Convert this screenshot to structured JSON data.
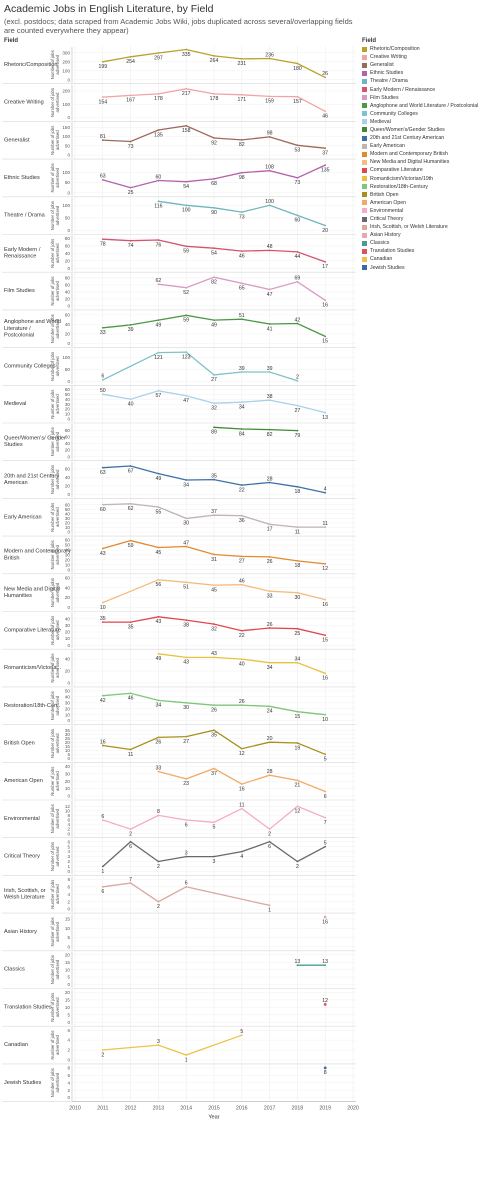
{
  "title": "Academic Jobs in English Literature, by Field",
  "subtitle": "(excl. postdocs; data scraped from Academic Jobs Wiki, jobs duplicated across several/overlapping fields are counted everywhere they appear)",
  "field_header": "Field",
  "legend_header": "Field",
  "ylabel": "Number of jobs advertised",
  "xlabel": "Year",
  "chart_data": {
    "type": "line",
    "layout": "small-multiples",
    "title": "Academic Jobs in English Literature, by Field",
    "xlabel": "Year",
    "ylabel": "Number of jobs advertised",
    "x_ticks": [
      2010,
      2011,
      2012,
      2013,
      2014,
      2015,
      2016,
      2017,
      2018,
      2019,
      2020
    ],
    "xlim": [
      2010,
      2020
    ],
    "grid": true,
    "legend": "right",
    "series": [
      {
        "name": "Rhetoric/Composition",
        "label": "Rhetoric/Composition",
        "color": "#b9a12a",
        "ylim": [
          0,
          330
        ],
        "yticks": [
          0,
          100,
          200,
          300
        ],
        "x": [
          2011,
          2012,
          2013,
          2014,
          2015,
          2016,
          2017,
          2018,
          2019
        ],
        "values": [
          199,
          254,
          297,
          335,
          264,
          231,
          236,
          180,
          26
        ]
      },
      {
        "name": "Creative Writing",
        "label": "Creative Writing",
        "color": "#f2a4a4",
        "ylim": [
          0,
          225
        ],
        "yticks": [
          0,
          100,
          200
        ],
        "x": [
          2011,
          2012,
          2013,
          2014,
          2015,
          2016,
          2017,
          2018,
          2019
        ],
        "values": [
          154,
          167,
          178,
          217,
          178,
          171,
          159,
          157,
          46
        ]
      },
      {
        "name": "Generalist",
        "label": "Generalist",
        "color": "#9c6a5a",
        "ylim": [
          0,
          160
        ],
        "yticks": [
          0,
          50,
          100,
          150
        ],
        "x": [
          2011,
          2012,
          2013,
          2014,
          2015,
          2016,
          2017,
          2018,
          2019
        ],
        "values": [
          81,
          73,
          135,
          158,
          92,
          82,
          98,
          53,
          37
        ]
      },
      {
        "name": "Ethnic Studies",
        "label": "Ethnic Studies",
        "color": "#b462ad",
        "ylim": [
          0,
          145
        ],
        "yticks": [
          0,
          50,
          100
        ],
        "x": [
          2011,
          2012,
          2013,
          2014,
          2015,
          2016,
          2017,
          2018,
          2019
        ],
        "values": [
          63,
          25,
          60,
          54,
          68,
          98,
          108,
          73,
          135
        ]
      },
      {
        "name": "Theatre / Drama",
        "label": "Theatre / Drama",
        "color": "#6fb6bd",
        "ylim": [
          0,
          118
        ],
        "yticks": [
          0,
          50,
          100
        ],
        "x": [
          2013,
          2014,
          2015,
          2016,
          2017,
          2018,
          2019
        ],
        "values": [
          116,
          100,
          90,
          73,
          100,
          60,
          20
        ]
      },
      {
        "name": "Early Modern / Renaissance",
        "label": "Early Modern / Renaissance",
        "color": "#d4546f",
        "ylim": [
          0,
          80
        ],
        "yticks": [
          0,
          20,
          40,
          60,
          80
        ],
        "x": [
          2011,
          2012,
          2013,
          2014,
          2015,
          2016,
          2017,
          2018,
          2019
        ],
        "values": [
          78,
          74,
          76,
          59,
          54,
          46,
          48,
          44,
          17
        ]
      },
      {
        "name": "Film Studies",
        "label": "Film Studies",
        "color": "#d99ac2",
        "ylim": [
          0,
          85
        ],
        "yticks": [
          0,
          20,
          40,
          60,
          80
        ],
        "x": [
          2013,
          2014,
          2015,
          2016,
          2017,
          2018,
          2019
        ],
        "values": [
          62,
          52,
          82,
          65,
          47,
          69,
          16
        ]
      },
      {
        "name": "Anglophone and World Literature / Postcolonial",
        "label": "Anglophone and World Literature / Postcolonial",
        "color": "#4a9a44",
        "ylim": [
          0,
          62
        ],
        "yticks": [
          0,
          20,
          40,
          60
        ],
        "x": [
          2011,
          2012,
          2013,
          2014,
          2015,
          2016,
          2017,
          2018,
          2019
        ],
        "values": [
          33,
          39,
          49,
          59,
          49,
          51,
          41,
          42,
          15
        ]
      },
      {
        "name": "Community Colleges",
        "label": "Community Colleges",
        "color": "#7fc2c9",
        "ylim": [
          0,
          125
        ],
        "yticks": [
          0,
          50,
          100
        ],
        "x": [
          2011,
          2013,
          2014,
          2015,
          2016,
          2017,
          2018
        ],
        "values": [
          6,
          121,
          123,
          27,
          39,
          39,
          2
        ]
      },
      {
        "name": "Medieval",
        "label": "Medieval",
        "color": "#a8d2e8",
        "ylim": [
          0,
          60
        ],
        "yticks": [
          0,
          10,
          20,
          30,
          40,
          50,
          60
        ],
        "x": [
          2011,
          2012,
          2013,
          2014,
          2015,
          2016,
          2017,
          2018,
          2019
        ],
        "values": [
          50,
          40,
          57,
          47,
          32,
          34,
          38,
          27,
          13
        ]
      },
      {
        "name": "Queer/Women's/Gender Studies",
        "label": "Queer/Women's/ Gender Studies",
        "color": "#3f8a34",
        "ylim": [
          0,
          90
        ],
        "yticks": [
          0,
          20,
          40,
          60,
          80
        ],
        "x": [
          2015,
          2016,
          2017,
          2018
        ],
        "values": [
          89,
          84,
          82,
          79
        ]
      },
      {
        "name": "20th and 21st Century American",
        "label": "20th and 21st Century American",
        "color": "#3f6fa6",
        "ylim": [
          0,
          70
        ],
        "yticks": [
          0,
          20,
          40,
          60
        ],
        "x": [
          2011,
          2012,
          2013,
          2014,
          2015,
          2016,
          2017,
          2018,
          2019
        ],
        "values": [
          63,
          67,
          49,
          34,
          35,
          22,
          28,
          18,
          4
        ]
      },
      {
        "name": "Early American",
        "label": "Early American",
        "color": "#c0b4b4",
        "ylim": [
          0,
          65
        ],
        "yticks": [
          0,
          10,
          20,
          30,
          40,
          50,
          60
        ],
        "x": [
          2011,
          2012,
          2013,
          2014,
          2015,
          2016,
          2017,
          2018,
          2019
        ],
        "values": [
          60,
          62,
          55,
          30,
          37,
          36,
          17,
          11,
          11
        ]
      },
      {
        "name": "Modern and Contemporary British",
        "label": "Modern and Contemporary British",
        "color": "#e08a2e",
        "ylim": [
          0,
          60
        ],
        "yticks": [
          0,
          10,
          20,
          30,
          40,
          50,
          60
        ],
        "x": [
          2011,
          2012,
          2013,
          2014,
          2015,
          2016,
          2017,
          2018,
          2019
        ],
        "values": [
          43,
          59,
          45,
          47,
          31,
          27,
          26,
          18,
          12
        ]
      },
      {
        "name": "New Media and Digital Humanities",
        "label": "New Media and Digital Humanities",
        "color": "#f4bd7f",
        "ylim": [
          0,
          60
        ],
        "yticks": [
          0,
          20,
          40,
          60
        ],
        "x": [
          2011,
          2013,
          2014,
          2015,
          2016,
          2017,
          2018,
          2019
        ],
        "values": [
          10,
          56,
          51,
          45,
          46,
          33,
          30,
          16
        ]
      },
      {
        "name": "Comparative Literature",
        "label": "Comparative Literature",
        "color": "#e0474f",
        "ylim": [
          0,
          45
        ],
        "yticks": [
          0,
          10,
          20,
          30,
          40
        ],
        "x": [
          2011,
          2012,
          2013,
          2014,
          2015,
          2016,
          2017,
          2018,
          2019
        ],
        "values": [
          35,
          35,
          43,
          38,
          32,
          22,
          26,
          25,
          15
        ]
      },
      {
        "name": "Romanticism/Victorian/19th",
        "label": "Romanticism/Victoria...",
        "color": "#e8c23c",
        "ylim": [
          0,
          50
        ],
        "yticks": [
          0,
          20,
          40
        ],
        "x": [
          2013,
          2014,
          2015,
          2016,
          2017,
          2018,
          2019
        ],
        "values": [
          49,
          43,
          43,
          40,
          34,
          34,
          16
        ]
      },
      {
        "name": "Restoration/18th-Century",
        "label": "Restoration/18th-Cen..",
        "color": "#7ec67a",
        "ylim": [
          0,
          50
        ],
        "yticks": [
          0,
          10,
          20,
          30,
          40,
          50
        ],
        "x": [
          2011,
          2012,
          2013,
          2014,
          2015,
          2016,
          2017,
          2018,
          2019
        ],
        "values": [
          42,
          46,
          34,
          30,
          26,
          26,
          24,
          15,
          10
        ]
      },
      {
        "name": "British Open",
        "label": "British Open",
        "color": "#a8901e",
        "ylim": [
          0,
          37
        ],
        "yticks": [
          0,
          5,
          10,
          15,
          20,
          25,
          30,
          35
        ],
        "x": [
          2011,
          2012,
          2013,
          2014,
          2015,
          2016,
          2017,
          2018,
          2019
        ],
        "values": [
          16,
          11,
          26,
          27,
          35,
          12,
          20,
          19,
          5
        ]
      },
      {
        "name": "American Open",
        "label": "American Open",
        "color": "#f2aa66",
        "ylim": [
          0,
          40
        ],
        "yticks": [
          0,
          10,
          20,
          30,
          40
        ],
        "x": [
          2013,
          2014,
          2015,
          2016,
          2017,
          2018,
          2019
        ],
        "values": [
          33,
          23,
          37,
          16,
          28,
          21,
          6
        ]
      },
      {
        "name": "Environmental",
        "label": "Environmental",
        "color": "#f4aac8",
        "ylim": [
          0,
          13
        ],
        "yticks": [
          0,
          2,
          4,
          6,
          8,
          10,
          12
        ],
        "x": [
          2011,
          2012,
          2013,
          2014,
          2015,
          2016,
          2017,
          2018,
          2019
        ],
        "values": [
          6,
          2,
          8,
          6,
          5,
          11,
          2,
          12,
          7
        ]
      },
      {
        "name": "Critical Theory",
        "label": "Critical Theory",
        "color": "#6b6570",
        "ylim": [
          0,
          6
        ],
        "yticks": [
          0,
          1,
          2,
          3,
          4,
          5,
          6
        ],
        "x": [
          2011,
          2012,
          2013,
          2014,
          2015,
          2016,
          2017,
          2018,
          2019
        ],
        "values": [
          1,
          6,
          2,
          3,
          3,
          4,
          6,
          2,
          5
        ]
      },
      {
        "name": "Irish, Scottish, or Welsh Literature",
        "label": "Irish, Scottish, or Welsh Literature",
        "color": "#d9a8a0",
        "ylim": [
          0,
          8
        ],
        "yticks": [
          0,
          2,
          4,
          6,
          8
        ],
        "x": [
          2011,
          2012,
          2013,
          2014,
          2017
        ],
        "values": [
          6,
          7,
          2,
          6,
          1
        ]
      },
      {
        "name": "Asian History",
        "label": "Asian History",
        "color": "#e7a7b3",
        "ylim": [
          0,
          16
        ],
        "yticks": [
          0,
          5,
          10,
          15
        ],
        "x": [
          2019
        ],
        "values": [
          16
        ]
      },
      {
        "name": "Classics",
        "label": "Classics",
        "color": "#4a9c8f",
        "ylim": [
          0,
          20
        ],
        "yticks": [
          0,
          5,
          10,
          15,
          20
        ],
        "x": [
          2018,
          2019
        ],
        "values": [
          13,
          13
        ]
      },
      {
        "name": "Translation Studies",
        "label": "Translation Studies",
        "color": "#e0505a",
        "ylim": [
          0,
          20
        ],
        "yticks": [
          0,
          5,
          10,
          15,
          20
        ],
        "x": [
          2019
        ],
        "values": [
          12
        ]
      },
      {
        "name": "Canadian",
        "label": "Canadian",
        "color": "#eec24a",
        "ylim": [
          0,
          6
        ],
        "yticks": [
          0,
          2,
          4,
          6
        ],
        "x": [
          2011,
          2013,
          2014,
          2016
        ],
        "values": [
          2,
          3,
          1,
          5
        ]
      },
      {
        "name": "Jewish Studies",
        "label": "Jewish Studies",
        "color": "#3d6aa0",
        "ylim": [
          0,
          8
        ],
        "yticks": [
          0,
          2,
          4,
          6,
          8
        ],
        "x": [
          2019
        ],
        "values": [
          8
        ]
      }
    ]
  },
  "legend_items": [
    {
      "label": "Rhetoric/Composition",
      "color": "#b9a12a"
    },
    {
      "label": "Creative Writing",
      "color": "#f2a4a4"
    },
    {
      "label": "Generalist",
      "color": "#9c6a5a"
    },
    {
      "label": "Ethnic Studies",
      "color": "#b462ad"
    },
    {
      "label": "Theatre / Drama",
      "color": "#6fb6bd"
    },
    {
      "label": "Early Modern / Renaissance",
      "color": "#d4546f"
    },
    {
      "label": "Film Studies",
      "color": "#d99ac2"
    },
    {
      "label": "Anglophone and World Literature / Postcolonial",
      "color": "#4a9a44"
    },
    {
      "label": "Community Colleges",
      "color": "#7fc2c9"
    },
    {
      "label": "Medieval",
      "color": "#a8d2e8"
    },
    {
      "label": "Queer/Women's/Gender Studies",
      "color": "#3f8a34"
    },
    {
      "label": "20th and 21st Century American",
      "color": "#3f6fa6"
    },
    {
      "label": "Early American",
      "color": "#c0b4b4"
    },
    {
      "label": "Modern and Contemporary British",
      "color": "#e08a2e"
    },
    {
      "label": "New Media and Digital Humanities",
      "color": "#f4bd7f"
    },
    {
      "label": "Comparative Literature",
      "color": "#e0474f"
    },
    {
      "label": "Romanticism/Victorian/19th",
      "color": "#e8c23c"
    },
    {
      "label": "Restoration/18th-Century",
      "color": "#7ec67a"
    },
    {
      "label": "British Open",
      "color": "#a8901e"
    },
    {
      "label": "American Open",
      "color": "#f2aa66"
    },
    {
      "label": "Environmental",
      "color": "#f4aac8"
    },
    {
      "label": "Critical Theory",
      "color": "#6b6570"
    },
    {
      "label": "Irish, Scottish, or Welsh Literature",
      "color": "#d9a8a0"
    },
    {
      "label": "Asian History",
      "color": "#e7a7b3"
    },
    {
      "label": "Classics",
      "color": "#4a9c8f"
    },
    {
      "label": "Translation Studies",
      "color": "#e0505a"
    },
    {
      "label": "Canadian",
      "color": "#eec24a"
    },
    {
      "label": "Jewish Studies",
      "color": "#3d6aa0"
    }
  ]
}
